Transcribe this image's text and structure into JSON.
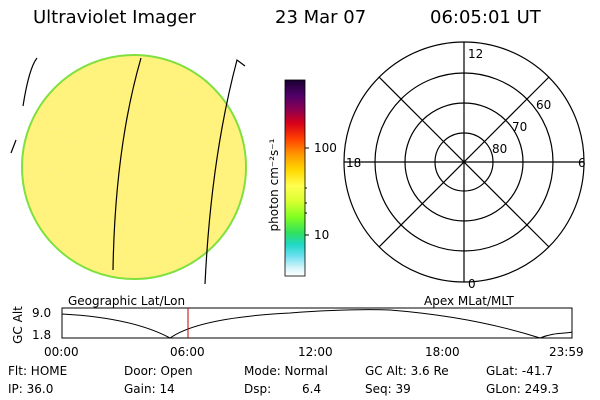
{
  "header": {
    "instrument": "Ultraviolet Imager",
    "date": "23 Mar 07",
    "time": "06:05:01 UT"
  },
  "colorbar": {
    "unit_label": "photon cm⁻²s⁻¹",
    "ticks": [
      "100",
      "10"
    ],
    "colors": [
      "#1a0030",
      "#3b0050",
      "#6a0070",
      "#a0003a",
      "#e00010",
      "#ff3a00",
      "#ff9000",
      "#ffd000",
      "#ffff40",
      "#c8ff30",
      "#70ff20",
      "#20e0a0",
      "#20d0e0",
      "#b0f0f8",
      "#ffffff"
    ]
  },
  "polar_plot": {
    "mlt_labels": [
      "12",
      "18",
      "6",
      "0"
    ],
    "lat_labels": [
      "60",
      "70",
      "80"
    ]
  },
  "panel_labels": {
    "left": "Geographic Lat/Lon",
    "right": "Apex MLat/MLT"
  },
  "altitude_plot": {
    "ylabel": "GC Alt",
    "y_ticks": [
      "9.0",
      "1.8"
    ],
    "x_ticks": [
      "00:00",
      "06:00",
      "12:00",
      "18:00",
      "23:59"
    ]
  },
  "status": {
    "flt": "Flt: HOME",
    "ip": "IP: 36.0",
    "door": "Door: Open",
    "gain": "Gain: 14",
    "mode": "Mode: Normal",
    "dsp_label": "Dsp:",
    "dsp_value": "6.4",
    "gc_alt": "GC Alt: 3.6 Re",
    "seq": "Seq: 39",
    "glat": "GLat: -41.7",
    "glon": "GLon: 249.3"
  },
  "colors": {
    "disk_fill": "#ffee30",
    "disk_edge": "#7fe040",
    "marker": "#c00000"
  }
}
